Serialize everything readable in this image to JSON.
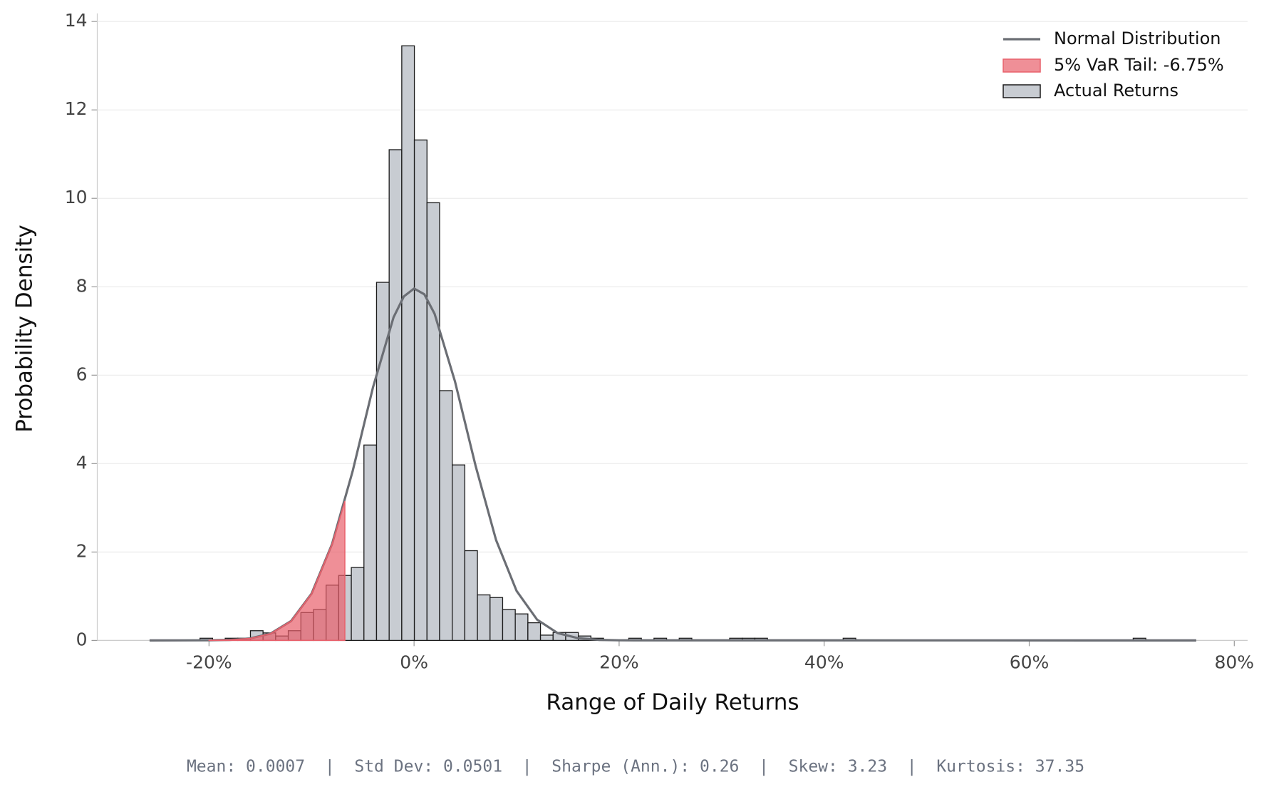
{
  "chart_data": {
    "type": "histogram",
    "name": "Actual Returns",
    "color": "#c8ccd2",
    "edgecolor": "#1a1a1a",
    "x_label": "Range of Daily Returns",
    "y_label": "Probability Density",
    "footer": "Mean: 0.0007  |  Std Dev: 0.0501  |  Sharpe (Ann.): 0.26  |  Skew: 3.23  |  Kurtosis: 37.35",
    "legend": "upper right",
    "grid": true,
    "xlim": [
      -30.9,
      81.3
    ],
    "ylim": [
      0,
      14.12
    ],
    "xticks": [
      {
        "value": -20,
        "label": "-20%"
      },
      {
        "value": 0,
        "label": "0%"
      },
      {
        "value": 20,
        "label": "20%"
      },
      {
        "value": 40,
        "label": "40%"
      },
      {
        "value": 60,
        "label": "60%"
      },
      {
        "value": 80,
        "label": "80%"
      }
    ],
    "yticks": [
      0,
      2,
      4,
      6,
      8,
      10,
      12,
      14
    ],
    "bins": [
      -25.8,
      -24.57,
      -23.34,
      -22.11,
      -20.88,
      -19.65,
      -18.42,
      -17.19,
      -15.96,
      -14.73,
      -13.5,
      -12.27,
      -11.04,
      -9.81,
      -8.58,
      -7.35,
      -6.12,
      -4.89,
      -3.66,
      -2.43,
      -1.2,
      0.03,
      1.26,
      2.49,
      3.72,
      4.95,
      6.18,
      7.41,
      8.64,
      9.87,
      11.1,
      12.33,
      13.56,
      14.79,
      16.02,
      17.25,
      18.48,
      19.71,
      20.94,
      22.17,
      23.4,
      24.63,
      25.86,
      27.09,
      28.32,
      29.55,
      30.78,
      32.01,
      33.24,
      34.47,
      35.7,
      36.93,
      38.16,
      39.39,
      40.62,
      41.85,
      43.08,
      44.31,
      45.54,
      46.77,
      48.0,
      49.23,
      50.46,
      51.69,
      52.92,
      54.15,
      55.38,
      56.61,
      57.84,
      59.07,
      60.3,
      61.53,
      62.76,
      63.99,
      65.22,
      66.45,
      67.68,
      68.91,
      70.14,
      71.37,
      72.6,
      73.83,
      75.06,
      76.29
    ],
    "values": [
      0,
      0,
      0,
      0,
      0.05,
      0,
      0.05,
      0.05,
      0.22,
      0.17,
      0.1,
      0.22,
      0.63,
      0.7,
      1.25,
      1.47,
      1.65,
      4.42,
      8.1,
      11.1,
      13.45,
      11.32,
      9.9,
      5.65,
      3.97,
      2.03,
      1.03,
      0.97,
      0.7,
      0.6,
      0.4,
      0.12,
      0.18,
      0.18,
      0.1,
      0.05,
      0,
      0,
      0.05,
      0,
      0.05,
      0,
      0.05,
      0,
      0,
      0,
      0.05,
      0.05,
      0.05,
      0,
      0,
      0,
      0,
      0,
      0,
      0.05,
      0,
      0,
      0,
      0,
      0,
      0,
      0,
      0,
      0,
      0,
      0,
      0,
      0,
      0,
      0,
      0,
      0,
      0,
      0,
      0,
      0,
      0,
      0.05,
      0,
      0,
      0,
      0
    ],
    "series": [
      {
        "name": "Normal Distribution",
        "type": "line",
        "color": "#6b6e74",
        "x": [
          -25.8,
          -20,
          -18,
          -16,
          -14,
          -12,
          -10,
          -8,
          -6,
          -4,
          -2,
          -1,
          0,
          1,
          2,
          4,
          6,
          8,
          10,
          12,
          14,
          16,
          18,
          20,
          76.29
        ],
        "values": [
          0,
          0.003,
          0.012,
          0.046,
          0.154,
          0.437,
          1.057,
          2.18,
          3.82,
          5.73,
          7.31,
          7.78,
          7.96,
          7.83,
          7.39,
          5.85,
          3.95,
          2.27,
          1.12,
          0.47,
          0.167,
          0.051,
          0.013,
          0.003,
          0
        ]
      },
      {
        "name": "5% VaR Tail: -6.75%",
        "type": "area",
        "color": "#e8606b",
        "x": [
          -20,
          -18,
          -16,
          -14,
          -12,
          -10,
          -8,
          -6.75
        ],
        "values": [
          0.003,
          0.012,
          0.046,
          0.154,
          0.437,
          1.057,
          2.18,
          3.15
        ]
      }
    ]
  }
}
